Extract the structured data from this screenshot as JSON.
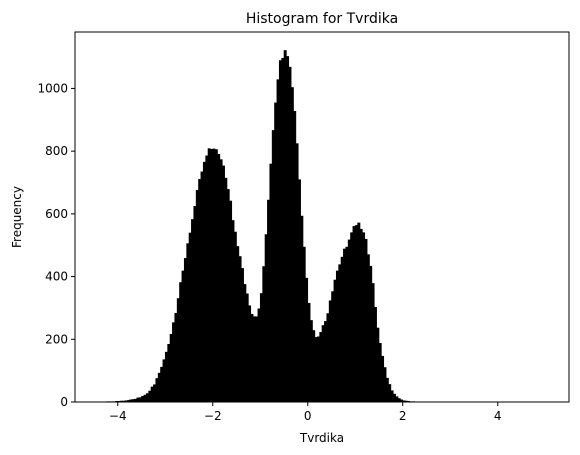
{
  "chart_data": {
    "type": "histogram",
    "title": "Histogram for Tvrdika",
    "xlabel": "Tvrdika",
    "ylabel": "Frequency",
    "xlim": [
      -4.9,
      5.5
    ],
    "ylim": [
      0,
      1180
    ],
    "x_ticks": [
      {
        "value": -4,
        "label": "−4"
      },
      {
        "value": -2,
        "label": "−2"
      },
      {
        "value": 0,
        "label": "0"
      },
      {
        "value": 2,
        "label": "2"
      },
      {
        "value": 4,
        "label": "4"
      }
    ],
    "y_ticks": [
      {
        "value": 0,
        "label": "0"
      },
      {
        "value": 200,
        "label": "200"
      },
      {
        "value": 400,
        "label": "400"
      },
      {
        "value": 600,
        "label": "600"
      },
      {
        "value": 800,
        "label": "800"
      },
      {
        "value": 1000,
        "label": "1000"
      }
    ],
    "bin_start": -4.5,
    "bin_width": 0.05,
    "color": "#000000",
    "counts": [
      0,
      0,
      0,
      0,
      0,
      1,
      1,
      1,
      1,
      2,
      2,
      3,
      3,
      4,
      5,
      7,
      8,
      9,
      13,
      14,
      18,
      22,
      27,
      35,
      48,
      55,
      75,
      92,
      111,
      135,
      159,
      184,
      216,
      253,
      283,
      330,
      381,
      418,
      458,
      505,
      539,
      582,
      624,
      675,
      710,
      734,
      765,
      785,
      808,
      806,
      807,
      805,
      790,
      773,
      753,
      714,
      678,
      641,
      579,
      542,
      496,
      464,
      426,
      375,
      345,
      307,
      280,
      272,
      272,
      297,
      346,
      432,
      534,
      644,
      759,
      866,
      954,
      1028,
      1089,
      1096,
      1121,
      1102,
      1068,
      1003,
      927,
      824,
      709,
      593,
      494,
      395,
      315,
      260,
      228,
      206,
      208,
      222,
      244,
      257,
      282,
      323,
      352,
      389,
      418,
      438,
      462,
      488,
      494,
      517,
      540,
      560,
      563,
      571,
      551,
      540,
      519,
      470,
      433,
      378,
      302,
      236,
      187,
      146,
      110,
      76,
      56,
      36,
      25,
      17,
      11,
      7,
      4,
      3,
      2,
      1,
      1,
      0,
      0,
      0,
      0,
      0,
      0,
      0,
      0,
      0,
      0,
      0,
      0,
      0,
      0,
      0,
      0,
      0
    ]
  }
}
